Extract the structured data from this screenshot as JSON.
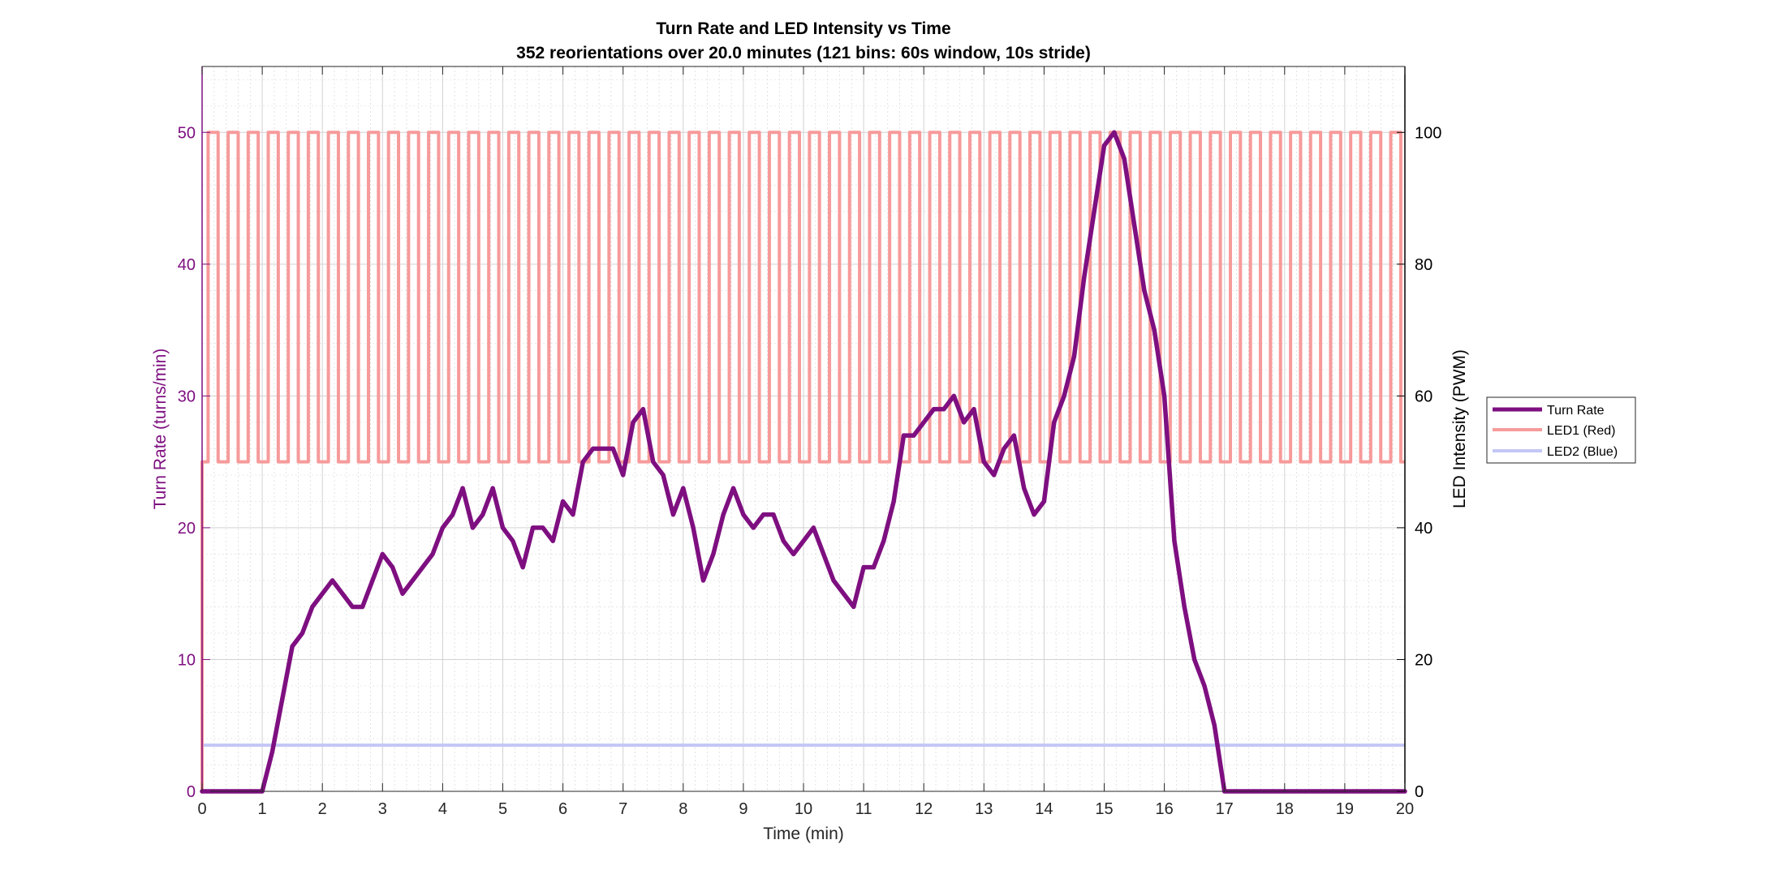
{
  "chart_data": {
    "type": "line",
    "title": "Turn Rate and LED Intensity vs Time",
    "subtitle": "352 reorientations over 20.0 minutes (121 bins: 60s window, 10s stride)",
    "xlabel": "Time (min)",
    "ylabel_left": "Turn Rate (turns/min)",
    "ylabel_right": "LED Intensity (PWM)",
    "xlim": [
      0,
      20
    ],
    "ylim_left": [
      0,
      55
    ],
    "ylim_right": [
      0,
      110
    ],
    "x_ticks": [
      0,
      1,
      2,
      3,
      4,
      5,
      6,
      7,
      8,
      9,
      10,
      11,
      12,
      13,
      14,
      15,
      16,
      17,
      18,
      19,
      20
    ],
    "y_left_ticks": [
      0,
      10,
      20,
      30,
      40,
      50
    ],
    "y_right_ticks": [
      0,
      20,
      40,
      60,
      80,
      100
    ],
    "grid": true,
    "legend_placement": "outside-right",
    "colors": {
      "turn_rate": "#7e0f80",
      "led1": "#f79a9a",
      "led2": "#c3c6f5",
      "left_axis": "#7e0f80",
      "right_axis": "#000000"
    },
    "series": [
      {
        "name": "Turn Rate",
        "axis": "left",
        "x": [
          0,
          0.1667,
          0.3333,
          0.5,
          0.6667,
          0.8333,
          1.0,
          1.1667,
          1.3333,
          1.5,
          1.6667,
          1.8333,
          2.0,
          2.1667,
          2.3333,
          2.5,
          2.6667,
          2.8333,
          3.0,
          3.1667,
          3.3333,
          3.5,
          3.6667,
          3.8333,
          4.0,
          4.1667,
          4.3333,
          4.5,
          4.6667,
          4.8333,
          5.0,
          5.1667,
          5.3333,
          5.5,
          5.6667,
          5.8333,
          6.0,
          6.1667,
          6.3333,
          6.5,
          6.6667,
          6.8333,
          7.0,
          7.1667,
          7.3333,
          7.5,
          7.6667,
          7.8333,
          8.0,
          8.1667,
          8.3333,
          8.5,
          8.6667,
          8.8333,
          9.0,
          9.1667,
          9.3333,
          9.5,
          9.6667,
          9.8333,
          10.0,
          10.1667,
          10.3333,
          10.5,
          10.6667,
          10.8333,
          11.0,
          11.1667,
          11.3333,
          11.5,
          11.6667,
          11.8333,
          12.0,
          12.1667,
          12.3333,
          12.5,
          12.6667,
          12.8333,
          13.0,
          13.1667,
          13.3333,
          13.5,
          13.6667,
          13.8333,
          14.0,
          14.1667,
          14.3333,
          14.5,
          14.6667,
          14.8333,
          15.0,
          15.1667,
          15.3333,
          15.5,
          15.6667,
          15.8333,
          16.0,
          16.1667,
          16.3333,
          16.5,
          16.6667,
          16.8333,
          17.0,
          17.1667,
          17.3333,
          17.5,
          17.6667,
          17.8333,
          18.0,
          18.1667,
          18.3333,
          18.5,
          18.6667,
          18.8333,
          19.0,
          19.1667,
          19.3333,
          19.5,
          19.6667,
          19.8333,
          20.0
        ],
        "values": [
          0,
          0,
          0,
          0,
          0,
          0,
          0,
          3,
          7,
          11,
          12,
          14,
          15,
          16,
          15,
          14,
          14,
          16,
          18,
          17,
          15,
          16,
          17,
          18,
          20,
          21,
          23,
          20,
          21,
          23,
          20,
          19,
          17,
          20,
          20,
          19,
          22,
          21,
          25,
          26,
          26,
          26,
          24,
          28,
          29,
          25,
          24,
          21,
          23,
          20,
          16,
          18,
          21,
          23,
          21,
          20,
          21,
          21,
          19,
          18,
          19,
          20,
          18,
          16,
          15,
          14,
          17,
          17,
          19,
          22,
          27,
          27,
          28,
          29,
          29,
          30,
          28,
          29,
          25,
          24,
          26,
          27,
          23,
          21,
          22,
          28,
          30,
          33,
          39,
          44,
          49,
          50,
          48,
          43,
          38,
          35,
          30,
          19,
          14,
          10,
          8,
          5,
          0,
          0,
          0,
          0,
          0,
          0,
          0,
          0,
          0,
          0,
          0,
          0,
          0,
          0,
          0,
          0,
          0,
          0,
          0
        ]
      },
      {
        "name": "LED1 (Red)",
        "axis": "right",
        "pattern": "square wave alternating 50 / 100, period 20 s",
        "low": 50,
        "high": 100,
        "period_min": 0.3333,
        "start_min": 0.1
      },
      {
        "name": "LED2 (Blue)",
        "axis": "right",
        "pattern": "constant",
        "value": 7
      }
    ]
  }
}
